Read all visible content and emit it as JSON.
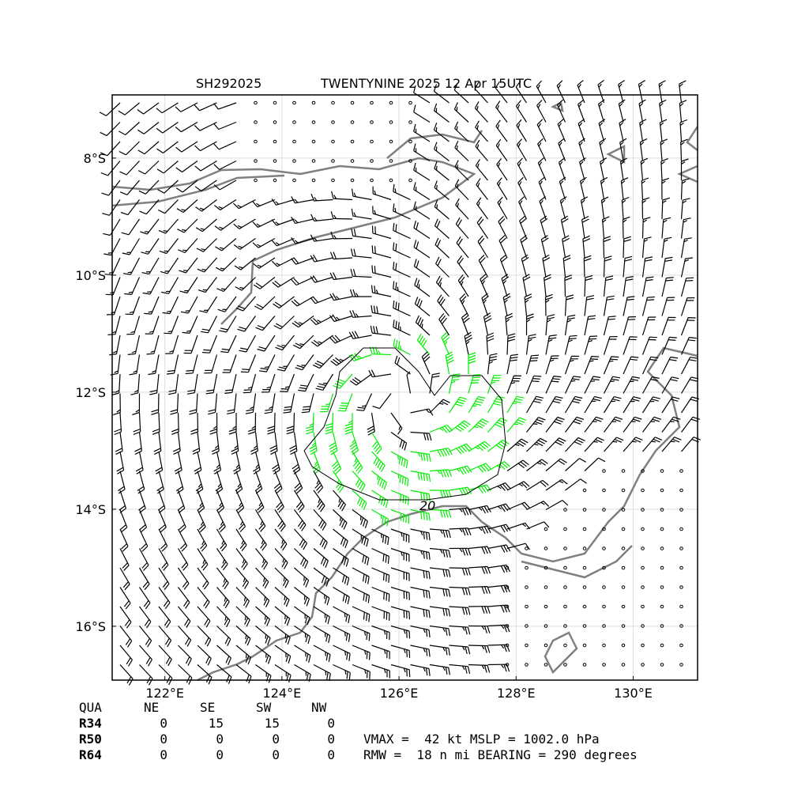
{
  "header": {
    "id": "SH292025",
    "title": "TWENTYNINE 2025 12 Apr 15UTC"
  },
  "map": {
    "type": "wind-barbs",
    "xlim": [
      121.1,
      131.1
    ],
    "ylim": [
      -16.92,
      -6.92
    ],
    "xticks": [
      {
        "value": 122,
        "label": "122°E"
      },
      {
        "value": 124,
        "label": "124°E"
      },
      {
        "value": 126,
        "label": "126°E"
      },
      {
        "value": 128,
        "label": "128°E"
      },
      {
        "value": 130,
        "label": "130°E"
      }
    ],
    "yticks": [
      {
        "value": -8,
        "label": "8°S"
      },
      {
        "value": -10,
        "label": "10°S"
      },
      {
        "value": -12,
        "label": "12°S"
      },
      {
        "value": -14,
        "label": "14°S"
      },
      {
        "value": -16,
        "label": "16°S"
      }
    ],
    "grid": true,
    "contour_label": "20"
  },
  "table": {
    "columns": [
      "QUA",
      "NE",
      "SE",
      "SW",
      "NW"
    ],
    "rows": [
      [
        "R34",
        "0",
        "15",
        "15",
        "0"
      ],
      [
        "R50",
        "0",
        "0",
        "0",
        "0"
      ],
      [
        "R64",
        "0",
        "0",
        "0",
        "0"
      ]
    ]
  },
  "summary": [
    "VMAX =  42 kt MSLP = 1002.0 hPa",
    "RMW =  18 n mi BEARING = 290 degrees"
  ]
}
